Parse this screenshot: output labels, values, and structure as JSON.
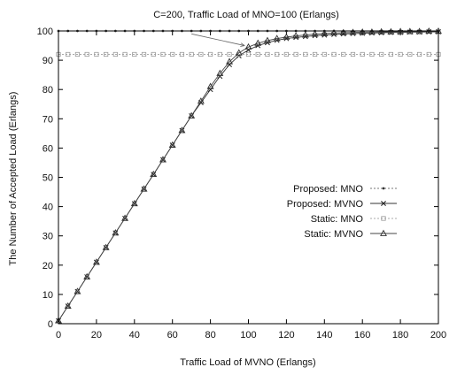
{
  "chart_data": {
    "type": "line",
    "title": "C=200, Traffic Load of MNO=100 (Erlangs)",
    "xlabel": "Traffic Load of MVNO (Erlangs)",
    "ylabel": "The Number of Accepted Load (Erlangs)",
    "xlim": [
      0,
      200
    ],
    "ylim": [
      0,
      100
    ],
    "xticks": [
      0,
      20,
      40,
      60,
      80,
      100,
      120,
      140,
      160,
      180,
      200
    ],
    "yticks": [
      0,
      10,
      20,
      30,
      40,
      50,
      60,
      70,
      80,
      90,
      100
    ],
    "grid": false,
    "legend_position": "center-right",
    "series": [
      {
        "name": "Proposed: MNO",
        "marker": "dot",
        "x": [
          0,
          5,
          10,
          15,
          20,
          25,
          30,
          35,
          40,
          45,
          50,
          55,
          60,
          65,
          70,
          75,
          80,
          85,
          90,
          95,
          100,
          105,
          110,
          115,
          120,
          125,
          130,
          135,
          140,
          145,
          150,
          155,
          160,
          165,
          170,
          175,
          180,
          185,
          190,
          195,
          200
        ],
        "values": [
          100,
          100,
          100,
          100,
          100,
          100,
          100,
          100,
          100,
          100,
          100,
          100,
          100,
          100,
          100,
          100,
          100,
          100,
          100,
          100,
          100,
          100,
          100,
          100,
          100,
          100,
          100,
          100,
          100,
          100,
          100,
          100,
          100,
          100,
          100,
          100,
          100,
          100,
          100,
          100,
          100
        ]
      },
      {
        "name": "Proposed: MVNO",
        "marker": "x",
        "x": [
          0,
          5,
          10,
          15,
          20,
          25,
          30,
          35,
          40,
          45,
          50,
          55,
          60,
          65,
          70,
          75,
          80,
          85,
          90,
          95,
          100,
          105,
          110,
          115,
          120,
          125,
          130,
          135,
          140,
          145,
          150,
          155,
          160,
          165,
          170,
          175,
          180,
          185,
          190,
          195,
          200
        ],
        "values": [
          1,
          6,
          11,
          16,
          21,
          26,
          31,
          36,
          41,
          46,
          51,
          56,
          61,
          66,
          71,
          75.5,
          80,
          84.5,
          88.5,
          91.5,
          93.5,
          95,
          96,
          96.8,
          97.4,
          97.8,
          98.1,
          98.4,
          98.6,
          98.8,
          99,
          99.1,
          99.2,
          99.3,
          99.4,
          99.5,
          99.5,
          99.6,
          99.6,
          99.7,
          99.7
        ]
      },
      {
        "name": "Static: MNO",
        "marker": "square",
        "x": [
          0,
          5,
          10,
          15,
          20,
          25,
          30,
          35,
          40,
          45,
          50,
          55,
          60,
          65,
          70,
          75,
          80,
          85,
          90,
          95,
          100,
          105,
          110,
          115,
          120,
          125,
          130,
          135,
          140,
          145,
          150,
          155,
          160,
          165,
          170,
          175,
          180,
          185,
          190,
          195,
          200
        ],
        "values": [
          92,
          92,
          92,
          92,
          92,
          92,
          92,
          92,
          92,
          92,
          92,
          92,
          92,
          92,
          92,
          92,
          92,
          92,
          92,
          92,
          92,
          92,
          92,
          92,
          92,
          92,
          92,
          92,
          92,
          92,
          92,
          92,
          92,
          92,
          92,
          92,
          92,
          92,
          92,
          92,
          92
        ]
      },
      {
        "name": "Static: MVNO",
        "marker": "triangle",
        "x": [
          0,
          5,
          10,
          15,
          20,
          25,
          30,
          35,
          40,
          45,
          50,
          55,
          60,
          65,
          70,
          75,
          80,
          85,
          90,
          95,
          100,
          105,
          110,
          115,
          120,
          125,
          130,
          135,
          140,
          145,
          150,
          155,
          160,
          165,
          170,
          175,
          180,
          185,
          190,
          195,
          200
        ],
        "values": [
          1,
          6,
          11,
          16,
          21,
          26,
          31,
          36,
          41,
          46,
          51,
          56,
          61,
          66,
          71,
          76,
          81,
          85.5,
          89.5,
          92.5,
          94.5,
          95.8,
          96.7,
          97.4,
          97.9,
          98.3,
          98.6,
          98.9,
          99.1,
          99.3,
          99.4,
          99.5,
          99.6,
          99.6,
          99.7,
          99.7,
          99.8,
          99.8,
          99.8,
          99.9,
          99.9
        ]
      }
    ],
    "annotations": [
      {
        "type": "arrow",
        "from": [
          70,
          99
        ],
        "to": [
          98,
          95
        ]
      }
    ]
  }
}
